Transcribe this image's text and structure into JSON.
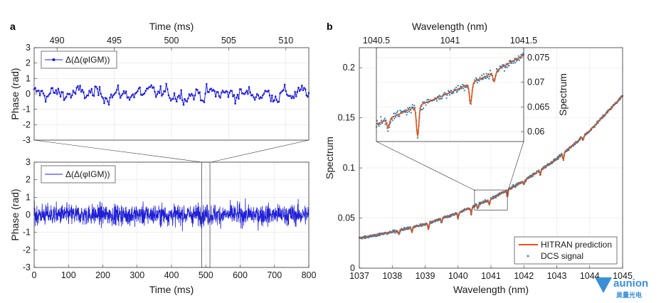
{
  "panels": {
    "a": "a",
    "b": "b"
  },
  "chart_data": [
    {
      "id": "a_top",
      "type": "line",
      "xlabel": "Time (ms)",
      "ylabel": "Phase (rad)",
      "xlim": [
        488,
        512
      ],
      "ylim": [
        -3,
        3
      ],
      "xticks": [
        "490",
        "495",
        "500",
        "505",
        "510"
      ],
      "yticks": [
        "3",
        "2",
        "1",
        "0",
        "-1",
        "-2",
        "-3"
      ],
      "legend": "Δ(Δ(φIGM))",
      "color": "#1f1fd6",
      "x_start": 488,
      "x_end": 512,
      "n_points": 240,
      "amplitude": 0.38,
      "grid": true
    },
    {
      "id": "a_bottom",
      "type": "line",
      "xlabel": "Time (ms)",
      "ylabel": "Phase (rad)",
      "xlim": [
        0,
        800
      ],
      "ylim": [
        -3,
        3
      ],
      "xticks": [
        "0",
        "100",
        "200",
        "300",
        "400",
        "500",
        "600",
        "700",
        "800"
      ],
      "yticks": [
        "3",
        "2",
        "1",
        "0",
        "-1",
        "-2",
        "-3"
      ],
      "legend": "Δ(Δ(φIGM))",
      "color": "#1f1fd6",
      "zoom_window": [
        488,
        512
      ],
      "grid": true
    },
    {
      "id": "b_main",
      "type": "scatter",
      "xlabel": "Wavelength (nm)",
      "ylabel": "Spectrum",
      "xlim": [
        1037,
        1045
      ],
      "ylim": [
        0,
        0.22
      ],
      "xticks": [
        "1037",
        "1038",
        "1039",
        "1040",
        "1041",
        "1042",
        "1043",
        "1044",
        "1045"
      ],
      "yticks": [
        "0",
        "0.05",
        "0.1",
        "0.15",
        "0.2"
      ],
      "series": [
        {
          "name": "HITRAN prediction",
          "color": "#d9541a"
        },
        {
          "name": "DCS signal",
          "color": "#2a79b6"
        }
      ],
      "baseline": {
        "x": [
          1037,
          1038,
          1039,
          1040,
          1041,
          1042,
          1043,
          1044,
          1045
        ],
        "y": [
          0.03,
          0.036,
          0.044,
          0.055,
          0.069,
          0.087,
          0.109,
          0.137,
          0.172
        ]
      },
      "absorption_lines": [
        1038.2,
        1038.6,
        1039.1,
        1039.5,
        1040.0,
        1040.4,
        1040.6,
        1040.95,
        1041.5,
        1042.0,
        1042.5,
        1043.2,
        1043.8
      ],
      "zoom_box": {
        "x": [
          1040.5,
          1041.5
        ],
        "y": [
          0.058,
          0.078
        ]
      },
      "grid": true
    },
    {
      "id": "b_inset",
      "type": "scatter",
      "xlabel": "Wavelength (nm)",
      "ylabel": "Spectrum",
      "xlim": [
        1040.5,
        1041.5
      ],
      "ylim": [
        0.058,
        0.077
      ],
      "xticks": [
        "1040.5",
        "1041",
        "1041.5"
      ],
      "yticks": [
        "0.075",
        "0.07",
        "0.065",
        "0.06"
      ],
      "baseline": {
        "x": [
          1040.5,
          1040.75,
          1041.0,
          1041.25,
          1041.5
        ],
        "y": [
          0.0615,
          0.0648,
          0.0679,
          0.0713,
          0.0755
        ]
      },
      "absorption_lines": [
        {
          "x": 1040.58,
          "depth": 0.0018
        },
        {
          "x": 1040.78,
          "depth": 0.006
        },
        {
          "x": 1041.14,
          "depth": 0.004
        },
        {
          "x": 1041.3,
          "depth": 0.002
        }
      ]
    }
  ],
  "watermark": {
    "brand": "aunion",
    "sub": "昊量光电"
  }
}
